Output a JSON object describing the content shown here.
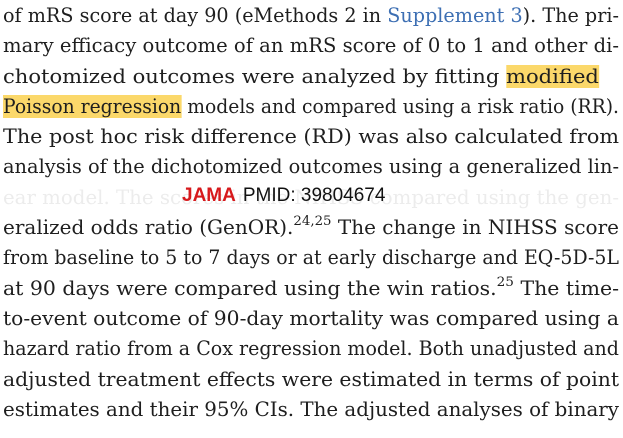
{
  "lines": [
    {
      "parts": [
        {
          "text": "of mRS score at day 90 (eMethods 2 in "
        },
        {
          "text": "Supplement 3",
          "style": "link"
        },
        {
          "text": "). The pri-"
        }
      ]
    },
    {
      "parts": [
        {
          "text": "mary efficacy outcome of an mRS score of 0 to 1 and other di-"
        }
      ]
    },
    {
      "parts": [
        {
          "text": "chotomized outcomes were analyzed by fitting "
        },
        {
          "text": "modified",
          "style": "hl"
        }
      ]
    },
    {
      "parts": [
        {
          "text": "Poisson regression",
          "style": "hl"
        },
        {
          "text": " models and compared using a risk ratio (RR)."
        }
      ]
    },
    {
      "parts": [
        {
          "text": "The post hoc risk difference (RD) was also calculated from"
        }
      ]
    },
    {
      "parts": [
        {
          "text": "analysis of the dichotomized outcomes using a generalized lin-"
        }
      ]
    },
    {
      "parts": [
        {
          "text": "ear model. The scores in the NIHSS compared using the gen-",
          "style": "faded"
        }
      ]
    },
    {
      "parts": [
        {
          "text": "eralized odds ratio (GenOR)."
        },
        {
          "text": "24,25",
          "style": "sup"
        },
        {
          "text": " The change in NIHSS score"
        }
      ]
    },
    {
      "parts": [
        {
          "text": "from baseline to 5 to 7 days or at early discharge and EQ-5D-5L"
        }
      ]
    },
    {
      "parts": [
        {
          "text": "at 90 days were compared using the win ratios."
        },
        {
          "text": "25",
          "style": "sup"
        },
        {
          "text": " The time-"
        }
      ]
    },
    {
      "parts": [
        {
          "text": "to-event outcome of 90-day mortality was compared using a"
        }
      ]
    },
    {
      "parts": [
        {
          "text": "hazard ratio from a Cox regression model. Both unadjusted and"
        }
      ]
    },
    {
      "parts": [
        {
          "text": "adjusted treatment effects were estimated in terms of point"
        }
      ]
    },
    {
      "parts": [
        {
          "text": "estimates and their 95% CIs. The adjusted analyses of binary"
        }
      ]
    }
  ],
  "watermark": {
    "brand": "JAMA",
    "pmid": "PMID: 39804674"
  }
}
